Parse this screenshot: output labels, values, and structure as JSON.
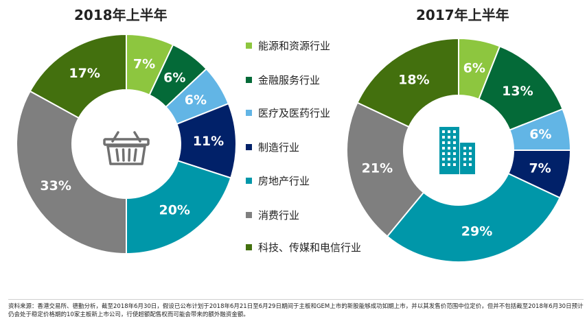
{
  "colors": {
    "lime": "#8dc63f",
    "dark_green": "#046a38",
    "light_blue": "#62b5e5",
    "navy": "#012169",
    "teal": "#0097a9",
    "gray": "#7f7f7f",
    "olive": "#43700e",
    "icon_gray": "#707070",
    "icon_teal": "#0097a9"
  },
  "icons": {
    "left": "shopping-basket-icon",
    "right": "office-building-icon"
  },
  "legend": [
    "能源和资源行业",
    "金融服务行业",
    "医疗及医药行业",
    "制造行业",
    "房地产行业",
    "消费行业",
    "科技、传媒和电信行业"
  ],
  "chart_data": [
    {
      "type": "pie",
      "title": "2018年上半年",
      "categories": [
        "能源和资源行业",
        "金融服务行业",
        "医疗及医药行业",
        "制造行业",
        "房地产行业",
        "消费行业",
        "科技、传媒和电信行业"
      ],
      "values": [
        7,
        6,
        6,
        11,
        20,
        33,
        17
      ],
      "labels": [
        "7%",
        "6%",
        "6%",
        "11%",
        "20%",
        "33%",
        "17%"
      ],
      "colors": [
        "#8dc63f",
        "#046a38",
        "#62b5e5",
        "#012169",
        "#0097a9",
        "#7f7f7f",
        "#43700e"
      ],
      "unit": "%"
    },
    {
      "type": "pie",
      "title": "2017年上半年",
      "categories": [
        "能源和资源行业",
        "金融服务行业",
        "医疗及医药行业",
        "制造行业",
        "房地产行业",
        "消费行业",
        "科技、传媒和电信行业"
      ],
      "values": [
        6,
        13,
        6,
        7,
        29,
        21,
        18
      ],
      "labels": [
        "6%",
        "13%",
        "6%",
        "7%",
        "29%",
        "21%",
        "18%"
      ],
      "colors": [
        "#8dc63f",
        "#046a38",
        "#62b5e5",
        "#012169",
        "#0097a9",
        "#7f7f7f",
        "#43700e"
      ],
      "unit": "%"
    }
  ],
  "footnote": "资料来源：香港交易所、德勤分析，截至2018年6月30日，假设已公布计划于2018年6月21日至6月29日期间于主板和GEM上市的新股能够成功如期上市，并以其发售价范围中位定价，但并不包括截至2018年6月30日预计仍会处于稳定价格期的10家主板新上市公司，行使超额配售权而可能会带来的额外融资金额。"
}
